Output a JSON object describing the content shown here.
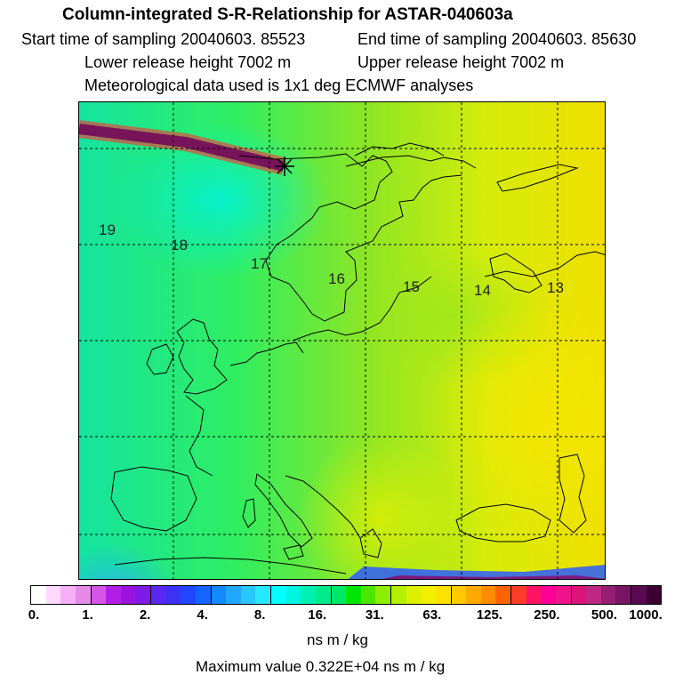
{
  "header": {
    "title": "Column-integrated S-R-Relationship for ASTAR-040603a",
    "start_time": "Start time of sampling 20040603. 85523",
    "end_time": "End time of sampling 20040603. 85630",
    "lower_height": "Lower release height 7002 m",
    "upper_height": "Upper release height 7002 m",
    "met_data": "Meteorological data used is 1x1 deg ECMWF analyses"
  },
  "map": {
    "field_description": "colored source-receptor sensitivity field over Europe",
    "longitude_labels": [
      "19",
      "18",
      "17",
      "16",
      "15",
      "14",
      "13"
    ],
    "release_marker": "asterisk-marker"
  },
  "colorbar": {
    "labels": [
      "0.",
      "1.",
      "2.",
      "4.",
      "8.",
      "16.",
      "31.",
      "63.",
      "125.",
      "250.",
      "500.",
      "1000."
    ],
    "colors": [
      "#ffffff",
      "#ffd9ff",
      "#f7b0f7",
      "#e68ae8",
      "#d455e8",
      "#b21ee6",
      "#9a14e0",
      "#7f1ae6",
      "#5a28f0",
      "#3c32f5",
      "#2246ff",
      "#1464ff",
      "#1488ff",
      "#20a8ff",
      "#28c8ff",
      "#28e8ff",
      "#00ffff",
      "#00f5e0",
      "#00f0b4",
      "#00ec8c",
      "#00e868",
      "#00e600",
      "#4ce600",
      "#8cee00",
      "#b4f000",
      "#dcf000",
      "#f0f000",
      "#ffe100",
      "#ffc800",
      "#ffaa00",
      "#ff8c00",
      "#ff6400",
      "#ff3c28",
      "#ff1464",
      "#ff0096",
      "#f0148c",
      "#dc1478",
      "#be2882",
      "#961e73",
      "#781464",
      "#5a0a50",
      "#3c0032"
    ],
    "unit": "ns m / kg",
    "max_value": "Maximum value  0.322E+04 ns m / kg"
  }
}
